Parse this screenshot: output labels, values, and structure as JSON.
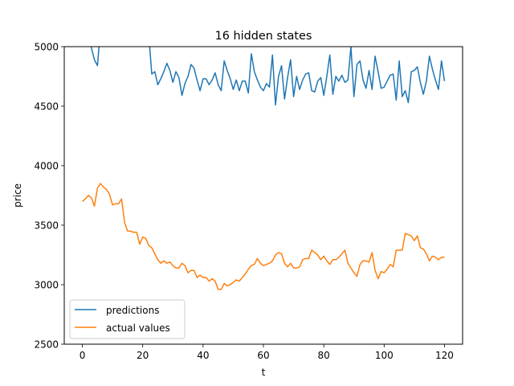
{
  "chart_data": {
    "type": "line",
    "title": "16 hidden states",
    "xlabel": "t",
    "ylabel": "price",
    "xlim": [
      -6,
      126
    ],
    "ylim": [
      2500,
      5000
    ],
    "xticks": [
      0,
      20,
      40,
      60,
      80,
      100,
      120
    ],
    "yticks": [
      2500,
      3000,
      3500,
      4000,
      4500,
      5000
    ],
    "grid": false,
    "legend_position": "lower-left",
    "series": [
      {
        "name": "predictions",
        "color": "#1f77b4",
        "x": [
          0,
          1,
          2,
          3,
          4,
          5,
          6,
          7,
          8,
          9,
          10,
          11,
          12,
          13,
          14,
          15,
          16,
          17,
          18,
          19,
          20,
          21,
          22,
          23,
          24,
          25,
          26,
          27,
          28,
          29,
          30,
          31,
          32,
          33,
          34,
          35,
          36,
          37,
          38,
          39,
          40,
          41,
          42,
          43,
          44,
          45,
          46,
          47,
          48,
          49,
          50,
          51,
          52,
          53,
          54,
          55,
          56,
          57,
          58,
          59,
          60,
          61,
          62,
          63,
          64,
          65,
          66,
          67,
          68,
          69,
          70,
          71,
          72,
          73,
          74,
          75,
          76,
          77,
          78,
          79,
          80,
          81,
          82,
          83,
          84,
          85,
          86,
          87,
          88,
          89,
          90,
          91,
          92,
          93,
          94,
          95,
          96,
          97,
          98,
          99,
          100,
          101,
          102,
          103,
          104,
          105,
          106,
          107,
          108,
          109,
          110,
          111,
          112,
          113,
          114,
          115,
          116,
          117,
          118,
          119,
          120
        ],
        "values": [
          5150,
          5120,
          5080,
          4990,
          4890,
          4840,
          5150,
          5200,
          5180,
          5220,
          5160,
          5190,
          5210,
          5170,
          5200,
          5180,
          5220,
          5200,
          5180,
          5210,
          5190,
          5150,
          5100,
          4770,
          4790,
          4680,
          4730,
          4790,
          4860,
          4800,
          4700,
          4790,
          4740,
          4590,
          4690,
          4750,
          4850,
          4820,
          4720,
          4630,
          4730,
          4730,
          4680,
          4720,
          4780,
          4680,
          4630,
          4880,
          4800,
          4730,
          4640,
          4720,
          4630,
          4710,
          4710,
          4610,
          4940,
          4790,
          4720,
          4660,
          4630,
          4690,
          4660,
          4930,
          4510,
          4750,
          4840,
          4560,
          4740,
          4890,
          4580,
          4750,
          4640,
          4720,
          4770,
          4780,
          4630,
          4620,
          4710,
          4740,
          4590,
          4750,
          4930,
          4600,
          4750,
          4710,
          4760,
          4700,
          4720,
          5000,
          4580,
          4850,
          4880,
          4720,
          4650,
          4800,
          4640,
          4920,
          4790,
          4650,
          4660,
          4710,
          4760,
          4770,
          4550,
          4880,
          4580,
          4630,
          4530,
          4790,
          4800,
          4830,
          4700,
          4600,
          4710,
          4920,
          4810,
          4720,
          4640,
          4880,
          4710
        ]
      },
      {
        "name": "actual values",
        "color": "#ff7f0e",
        "x": [
          0,
          1,
          2,
          3,
          4,
          5,
          6,
          7,
          8,
          9,
          10,
          11,
          12,
          13,
          14,
          15,
          16,
          17,
          18,
          19,
          20,
          21,
          22,
          23,
          24,
          25,
          26,
          27,
          28,
          29,
          30,
          31,
          32,
          33,
          34,
          35,
          36,
          37,
          38,
          39,
          40,
          41,
          42,
          43,
          44,
          45,
          46,
          47,
          48,
          49,
          50,
          51,
          52,
          53,
          54,
          55,
          56,
          57,
          58,
          59,
          60,
          61,
          62,
          63,
          64,
          65,
          66,
          67,
          68,
          69,
          70,
          71,
          72,
          73,
          74,
          75,
          76,
          77,
          78,
          79,
          80,
          81,
          82,
          83,
          84,
          85,
          86,
          87,
          88,
          89,
          90,
          91,
          92,
          93,
          94,
          95,
          96,
          97,
          98,
          99,
          100,
          101,
          102,
          103,
          104,
          105,
          106,
          107,
          108,
          109,
          110,
          111,
          112,
          113,
          114,
          115,
          116,
          117,
          118,
          119,
          120
        ],
        "values": [
          3700,
          3720,
          3750,
          3730,
          3660,
          3810,
          3850,
          3820,
          3800,
          3760,
          3670,
          3680,
          3680,
          3720,
          3520,
          3450,
          3450,
          3440,
          3440,
          3340,
          3400,
          3390,
          3330,
          3310,
          3260,
          3210,
          3180,
          3200,
          3180,
          3190,
          3160,
          3140,
          3140,
          3180,
          3160,
          3100,
          3120,
          3120,
          3060,
          3080,
          3060,
          3060,
          3030,
          3050,
          3030,
          2960,
          2960,
          3010,
          2990,
          3000,
          3020,
          3040,
          3030,
          3060,
          3090,
          3130,
          3160,
          3170,
          3220,
          3180,
          3160,
          3170,
          3180,
          3200,
          3250,
          3270,
          3260,
          3180,
          3150,
          3180,
          3140,
          3140,
          3150,
          3210,
          3220,
          3220,
          3290,
          3270,
          3250,
          3210,
          3240,
          3200,
          3170,
          3210,
          3210,
          3230,
          3260,
          3290,
          3180,
          3140,
          3100,
          3070,
          3170,
          3200,
          3200,
          3190,
          3270,
          3120,
          3050,
          3110,
          3100,
          3130,
          3170,
          3150,
          3290,
          3290,
          3290,
          3430,
          3420,
          3410,
          3370,
          3410,
          3310,
          3300,
          3260,
          3200,
          3240,
          3230,
          3210,
          3230,
          3230
        ]
      }
    ]
  }
}
